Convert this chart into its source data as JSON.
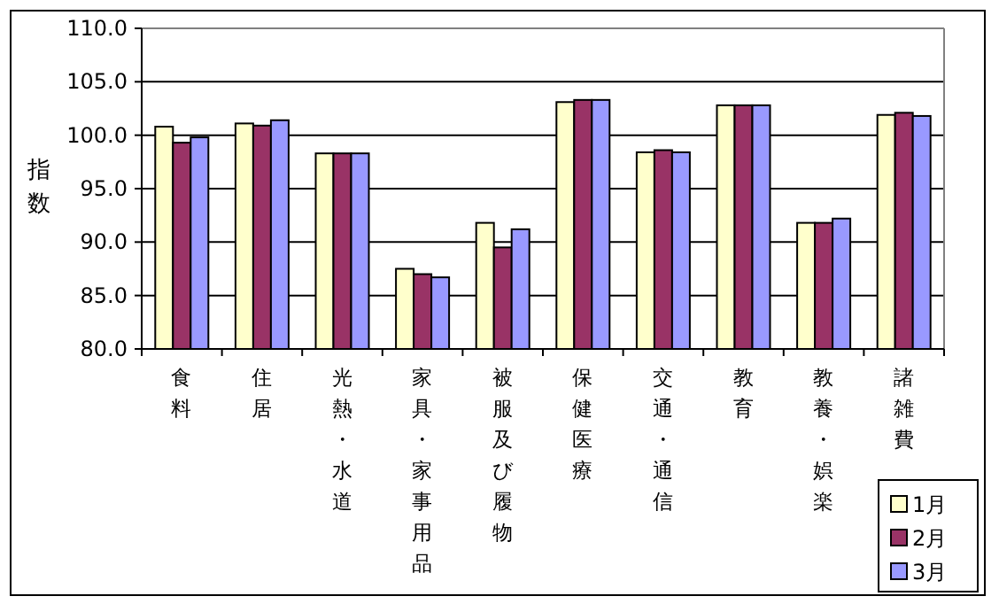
{
  "chart_data": {
    "type": "bar",
    "ylabel": "指数",
    "categories": [
      "食料",
      "住居",
      "光熱・水道",
      "家具・家事用品",
      "被服及び履物",
      "保健医療",
      "交通・通信",
      "教育",
      "教養・娯楽",
      "諸雑費"
    ],
    "series": [
      {
        "name": "1月",
        "color": "#ffffcc",
        "values": [
          100.8,
          101.1,
          98.3,
          87.5,
          91.8,
          103.1,
          98.4,
          102.8,
          91.8,
          101.9
        ]
      },
      {
        "name": "2月",
        "color": "#993366",
        "values": [
          99.3,
          100.9,
          98.3,
          87.0,
          89.5,
          103.3,
          98.6,
          102.8,
          91.8,
          102.1
        ]
      },
      {
        "name": "3月",
        "color": "#9999ff",
        "values": [
          99.8,
          101.4,
          98.3,
          86.7,
          91.2,
          103.3,
          98.4,
          102.8,
          92.2,
          101.8
        ]
      }
    ],
    "ylim": [
      80,
      110
    ],
    "yticks": [
      {
        "value": 80,
        "label": "80.0"
      },
      {
        "value": 85,
        "label": "85.0"
      },
      {
        "value": 90,
        "label": "90.0"
      },
      {
        "value": 95,
        "label": "95.0"
      },
      {
        "value": 100,
        "label": "100.0"
      },
      {
        "value": 105,
        "label": "105.0"
      },
      {
        "value": 110,
        "label": "110.0"
      }
    ],
    "grid": "y",
    "legend": "bottom right"
  }
}
